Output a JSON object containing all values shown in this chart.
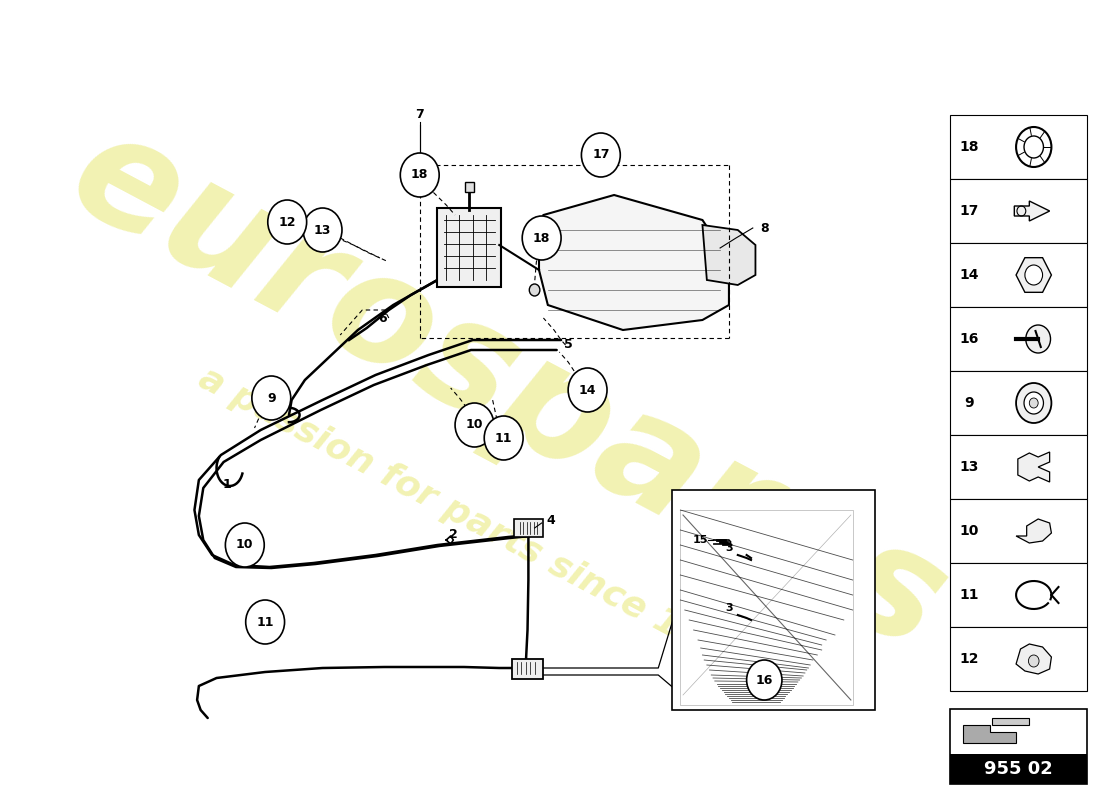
{
  "bg_color": "#ffffff",
  "watermark_text1": "eurospares",
  "watermark_text2": "a passion for parts since 1985",
  "watermark_color": "#d4d400",
  "watermark_alpha": 0.3,
  "part_number_box": "955 02",
  "right_panel_items": [
    18,
    17,
    14,
    16,
    9,
    13,
    10,
    11,
    12
  ],
  "fig_width": 11.0,
  "fig_height": 8.0,
  "dpi": 100
}
